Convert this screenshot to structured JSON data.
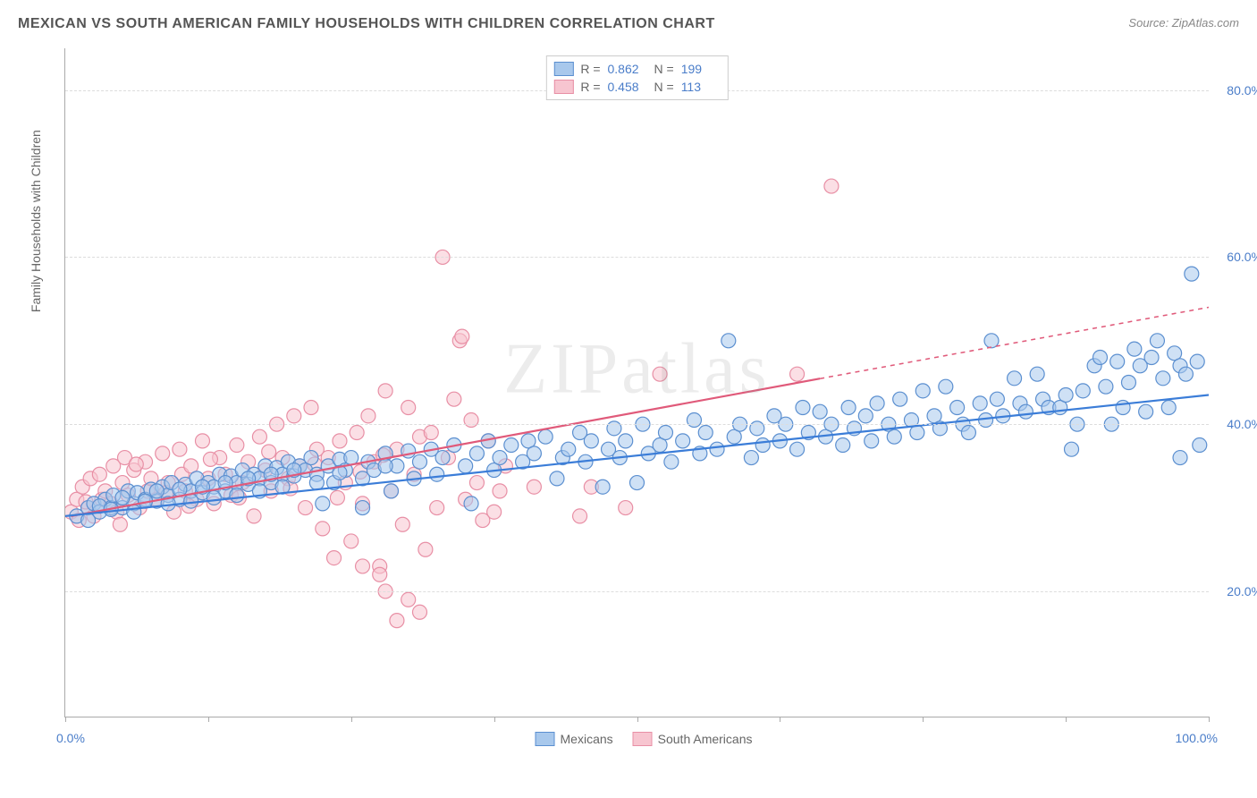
{
  "title": "MEXICAN VS SOUTH AMERICAN FAMILY HOUSEHOLDS WITH CHILDREN CORRELATION CHART",
  "source_label": "Source:",
  "source_name": "ZipAtlas.com",
  "y_axis_label": "Family Households with Children",
  "watermark": "ZIPatlas",
  "chart": {
    "type": "scatter",
    "background_color": "#ffffff",
    "grid_color": "#dddddd",
    "axis_color": "#aaaaaa",
    "y_label_color": "#4a7dc9",
    "x_range": [
      0,
      100
    ],
    "y_range": [
      5,
      85
    ],
    "x_tick_positions": [
      0,
      12.5,
      25,
      37.5,
      50,
      62.5,
      75,
      87.5,
      100
    ],
    "x_tick_labels": {
      "left": "0.0%",
      "right": "100.0%"
    },
    "y_gridlines": [
      20,
      40,
      60,
      80
    ],
    "y_tick_labels": [
      "20.0%",
      "40.0%",
      "60.0%",
      "80.0%"
    ],
    "marker_radius": 8,
    "marker_stroke_width": 1.2,
    "marker_opacity": 0.55,
    "trend_line_width": 2.2,
    "blue": {
      "fill": "#a8c8ec",
      "stroke": "#5b8fd0",
      "line": "#3b7dd8"
    },
    "pink": {
      "fill": "#f7c5d0",
      "stroke": "#e88fa5",
      "line": "#e05a7a"
    }
  },
  "legend_top": {
    "rows": [
      {
        "swatch_fill": "#a8c8ec",
        "swatch_stroke": "#5b8fd0",
        "r_label": "R =",
        "r_value": "0.862",
        "n_label": "N =",
        "n_value": "199"
      },
      {
        "swatch_fill": "#f7c5d0",
        "swatch_stroke": "#e88fa5",
        "r_label": "R =",
        "r_value": "0.458",
        "n_label": "N =",
        "n_value": "113"
      }
    ]
  },
  "legend_bottom": {
    "items": [
      {
        "swatch_fill": "#a8c8ec",
        "swatch_stroke": "#5b8fd0",
        "label": "Mexicans"
      },
      {
        "swatch_fill": "#f7c5d0",
        "swatch_stroke": "#e88fa5",
        "label": "South Americans"
      }
    ]
  },
  "trend_lines": {
    "blue": {
      "x1": 0,
      "y1": 29,
      "x2": 100,
      "y2": 43.5,
      "solid_until_x": 100
    },
    "pink": {
      "x1": 0.5,
      "y1": 29,
      "x2": 100,
      "y2": 54,
      "solid_until_x": 66
    }
  },
  "scatter": {
    "blue": [
      [
        1,
        29
      ],
      [
        2,
        30
      ],
      [
        2.5,
        30.5
      ],
      [
        3,
        29.5
      ],
      [
        3.5,
        31
      ],
      [
        4,
        30
      ],
      [
        4.2,
        31.5
      ],
      [
        5,
        30
      ],
      [
        5.5,
        32
      ],
      [
        6,
        30.5
      ],
      [
        6.3,
        31.8
      ],
      [
        7,
        31
      ],
      [
        7.5,
        32.2
      ],
      [
        8,
        30.8
      ],
      [
        8.5,
        32.5
      ],
      [
        9,
        31.5
      ],
      [
        9.3,
        33
      ],
      [
        10,
        31
      ],
      [
        10.5,
        32.8
      ],
      [
        11,
        32
      ],
      [
        11.5,
        33.5
      ],
      [
        12,
        31.8
      ],
      [
        12.5,
        33
      ],
      [
        13,
        32.5
      ],
      [
        13.5,
        34
      ],
      [
        14,
        32
      ],
      [
        14.5,
        33.8
      ],
      [
        15,
        33
      ],
      [
        15.5,
        34.5
      ],
      [
        16,
        32.8
      ],
      [
        16.5,
        34
      ],
      [
        17,
        33.5
      ],
      [
        17.5,
        35
      ],
      [
        18,
        33
      ],
      [
        18.5,
        34.8
      ],
      [
        19,
        34
      ],
      [
        19.5,
        35.5
      ],
      [
        20,
        33.8
      ],
      [
        20.5,
        35
      ],
      [
        21,
        34.5
      ],
      [
        21.5,
        36
      ],
      [
        22,
        34
      ],
      [
        22.5,
        30.5
      ],
      [
        23,
        35
      ],
      [
        23.5,
        33
      ],
      [
        24,
        35.8
      ],
      [
        24.5,
        34.5
      ],
      [
        25,
        36
      ],
      [
        26,
        30
      ],
      [
        26.5,
        35.5
      ],
      [
        27,
        34.5
      ],
      [
        28,
        36.5
      ],
      [
        28.5,
        32
      ],
      [
        29,
        35
      ],
      [
        30,
        36.8
      ],
      [
        30.5,
        33.5
      ],
      [
        31,
        35.5
      ],
      [
        32,
        37
      ],
      [
        32.5,
        34
      ],
      [
        33,
        36
      ],
      [
        34,
        37.5
      ],
      [
        35,
        35
      ],
      [
        35.5,
        30.5
      ],
      [
        36,
        36.5
      ],
      [
        37,
        38
      ],
      [
        37.5,
        34.5
      ],
      [
        38,
        36
      ],
      [
        39,
        37.5
      ],
      [
        40,
        35.5
      ],
      [
        40.5,
        38
      ],
      [
        41,
        36.5
      ],
      [
        42,
        38.5
      ],
      [
        43,
        33.5
      ],
      [
        43.5,
        36
      ],
      [
        44,
        37
      ],
      [
        45,
        39
      ],
      [
        45.5,
        35.5
      ],
      [
        46,
        38
      ],
      [
        47,
        32.5
      ],
      [
        47.5,
        37
      ],
      [
        48,
        39.5
      ],
      [
        48.5,
        36
      ],
      [
        49,
        38
      ],
      [
        50,
        33
      ],
      [
        50.5,
        40
      ],
      [
        51,
        36.5
      ],
      [
        52,
        37.5
      ],
      [
        52.5,
        39
      ],
      [
        53,
        35.5
      ],
      [
        54,
        38
      ],
      [
        55,
        40.5
      ],
      [
        55.5,
        36.5
      ],
      [
        56,
        39
      ],
      [
        57,
        37
      ],
      [
        58,
        50
      ],
      [
        58.5,
        38.5
      ],
      [
        59,
        40
      ],
      [
        60,
        36
      ],
      [
        60.5,
        39.5
      ],
      [
        61,
        37.5
      ],
      [
        62,
        41
      ],
      [
        62.5,
        38
      ],
      [
        63,
        40
      ],
      [
        64,
        37
      ],
      [
        64.5,
        42
      ],
      [
        65,
        39
      ],
      [
        66,
        41.5
      ],
      [
        66.5,
        38.5
      ],
      [
        67,
        40
      ],
      [
        68,
        37.5
      ],
      [
        68.5,
        42
      ],
      [
        69,
        39.5
      ],
      [
        70,
        41
      ],
      [
        70.5,
        38
      ],
      [
        71,
        42.5
      ],
      [
        72,
        40
      ],
      [
        72.5,
        38.5
      ],
      [
        73,
        43
      ],
      [
        74,
        40.5
      ],
      [
        74.5,
        39
      ],
      [
        75,
        44
      ],
      [
        76,
        41
      ],
      [
        76.5,
        39.5
      ],
      [
        77,
        44.5
      ],
      [
        78,
        42
      ],
      [
        78.5,
        40
      ],
      [
        79,
        39
      ],
      [
        80,
        42.5
      ],
      [
        80.5,
        40.5
      ],
      [
        81,
        50
      ],
      [
        81.5,
        43
      ],
      [
        82,
        41
      ],
      [
        83,
        45.5
      ],
      [
        83.5,
        42.5
      ],
      [
        84,
        41.5
      ],
      [
        85,
        46
      ],
      [
        85.5,
        43
      ],
      [
        86,
        42
      ],
      [
        87,
        42
      ],
      [
        87.5,
        43.5
      ],
      [
        88,
        37
      ],
      [
        88.5,
        40
      ],
      [
        89,
        44
      ],
      [
        90,
        47
      ],
      [
        90.5,
        48
      ],
      [
        91,
        44.5
      ],
      [
        91.5,
        40
      ],
      [
        92,
        47.5
      ],
      [
        92.5,
        42
      ],
      [
        93,
        45
      ],
      [
        93.5,
        49
      ],
      [
        94,
        47
      ],
      [
        94.5,
        41.5
      ],
      [
        95,
        48
      ],
      [
        95.5,
        50
      ],
      [
        96,
        45.5
      ],
      [
        96.5,
        42
      ],
      [
        97,
        48.5
      ],
      [
        97.5,
        47
      ],
      [
        97.5,
        36
      ],
      [
        98,
        46
      ],
      [
        98.5,
        58
      ],
      [
        99,
        47.5
      ],
      [
        99.2,
        37.5
      ],
      [
        2,
        28.5
      ],
      [
        3,
        30.2
      ],
      [
        4,
        29.8
      ],
      [
        5,
        31.2
      ],
      [
        6,
        29.5
      ],
      [
        7,
        30.8
      ],
      [
        8,
        32
      ],
      [
        9,
        30.5
      ],
      [
        10,
        32.2
      ],
      [
        11,
        30.8
      ],
      [
        12,
        32.5
      ],
      [
        13,
        31.2
      ],
      [
        14,
        33
      ],
      [
        15,
        31.5
      ],
      [
        16,
        33.5
      ],
      [
        17,
        32
      ],
      [
        18,
        34
      ],
      [
        19,
        32.5
      ],
      [
        20,
        34.5
      ],
      [
        22,
        33
      ],
      [
        24,
        34.2
      ],
      [
        26,
        33.5
      ],
      [
        28,
        35
      ]
    ],
    "pink": [
      [
        0.5,
        29.5
      ],
      [
        1,
        31
      ],
      [
        1.2,
        28.5
      ],
      [
        1.5,
        32.5
      ],
      [
        2,
        30
      ],
      [
        2.2,
        33.5
      ],
      [
        2.5,
        29
      ],
      [
        3,
        34
      ],
      [
        3.2,
        31
      ],
      [
        3.5,
        32
      ],
      [
        4,
        30.5
      ],
      [
        4.2,
        35
      ],
      [
        4.5,
        29.5
      ],
      [
        5,
        33
      ],
      [
        5.2,
        36
      ],
      [
        5.5,
        31.5
      ],
      [
        6,
        34.5
      ],
      [
        6.5,
        30
      ],
      [
        7,
        35.5
      ],
      [
        7.2,
        32
      ],
      [
        7.5,
        33.5
      ],
      [
        8,
        31
      ],
      [
        8.5,
        36.5
      ],
      [
        9,
        33
      ],
      [
        9.5,
        29.5
      ],
      [
        10,
        37
      ],
      [
        10.2,
        34
      ],
      [
        10.5,
        32
      ],
      [
        11,
        35
      ],
      [
        11.5,
        31
      ],
      [
        12,
        38
      ],
      [
        12.5,
        33.5
      ],
      [
        13,
        30.5
      ],
      [
        13.5,
        36
      ],
      [
        14,
        34
      ],
      [
        14.5,
        31.5
      ],
      [
        15,
        37.5
      ],
      [
        15.5,
        33
      ],
      [
        16,
        35.5
      ],
      [
        16.5,
        29
      ],
      [
        17,
        38.5
      ],
      [
        17.5,
        34.5
      ],
      [
        18,
        32
      ],
      [
        18.5,
        40
      ],
      [
        19,
        36
      ],
      [
        19.5,
        33.5
      ],
      [
        20,
        41
      ],
      [
        20.5,
        35
      ],
      [
        21,
        30
      ],
      [
        21.5,
        42
      ],
      [
        22,
        37
      ],
      [
        22.5,
        27.5
      ],
      [
        23,
        36
      ],
      [
        23.5,
        24
      ],
      [
        24,
        38
      ],
      [
        24.5,
        33
      ],
      [
        25,
        26
      ],
      [
        25.5,
        39
      ],
      [
        26,
        30.5
      ],
      [
        26.5,
        41
      ],
      [
        27,
        35.5
      ],
      [
        27.5,
        23
      ],
      [
        28,
        44
      ],
      [
        28.5,
        32
      ],
      [
        29,
        37
      ],
      [
        29.5,
        28
      ],
      [
        30,
        42
      ],
      [
        30.5,
        34
      ],
      [
        31,
        38.5
      ],
      [
        31.5,
        25
      ],
      [
        32,
        39
      ],
      [
        32.5,
        30
      ],
      [
        33,
        60
      ],
      [
        33.5,
        36
      ],
      [
        34,
        43
      ],
      [
        34.5,
        50
      ],
      [
        34.7,
        50.5
      ],
      [
        35,
        31
      ],
      [
        35.5,
        40.5
      ],
      [
        36,
        33
      ],
      [
        36.5,
        28.5
      ],
      [
        37,
        38
      ],
      [
        37.5,
        29.5
      ],
      [
        38,
        32
      ],
      [
        38.5,
        35
      ],
      [
        41,
        32.5
      ],
      [
        29,
        16.5
      ],
      [
        27.5,
        22
      ],
      [
        30,
        19
      ],
      [
        31,
        17.5
      ],
      [
        26,
        23
      ],
      [
        28,
        20
      ],
      [
        45,
        29
      ],
      [
        46,
        32.5
      ],
      [
        49,
        30
      ],
      [
        52,
        46
      ],
      [
        64,
        46
      ],
      [
        67,
        68.5
      ],
      [
        4.8,
        28
      ],
      [
        6.2,
        35.2
      ],
      [
        8.8,
        31.8
      ],
      [
        10.8,
        30.2
      ],
      [
        12.7,
        35.8
      ],
      [
        15.2,
        31.2
      ],
      [
        17.8,
        36.7
      ],
      [
        19.7,
        32.3
      ],
      [
        21.8,
        35.2
      ],
      [
        23.8,
        31.2
      ],
      [
        25.8,
        34.3
      ],
      [
        27.8,
        36.3
      ],
      [
        1.8,
        30.7
      ]
    ]
  }
}
